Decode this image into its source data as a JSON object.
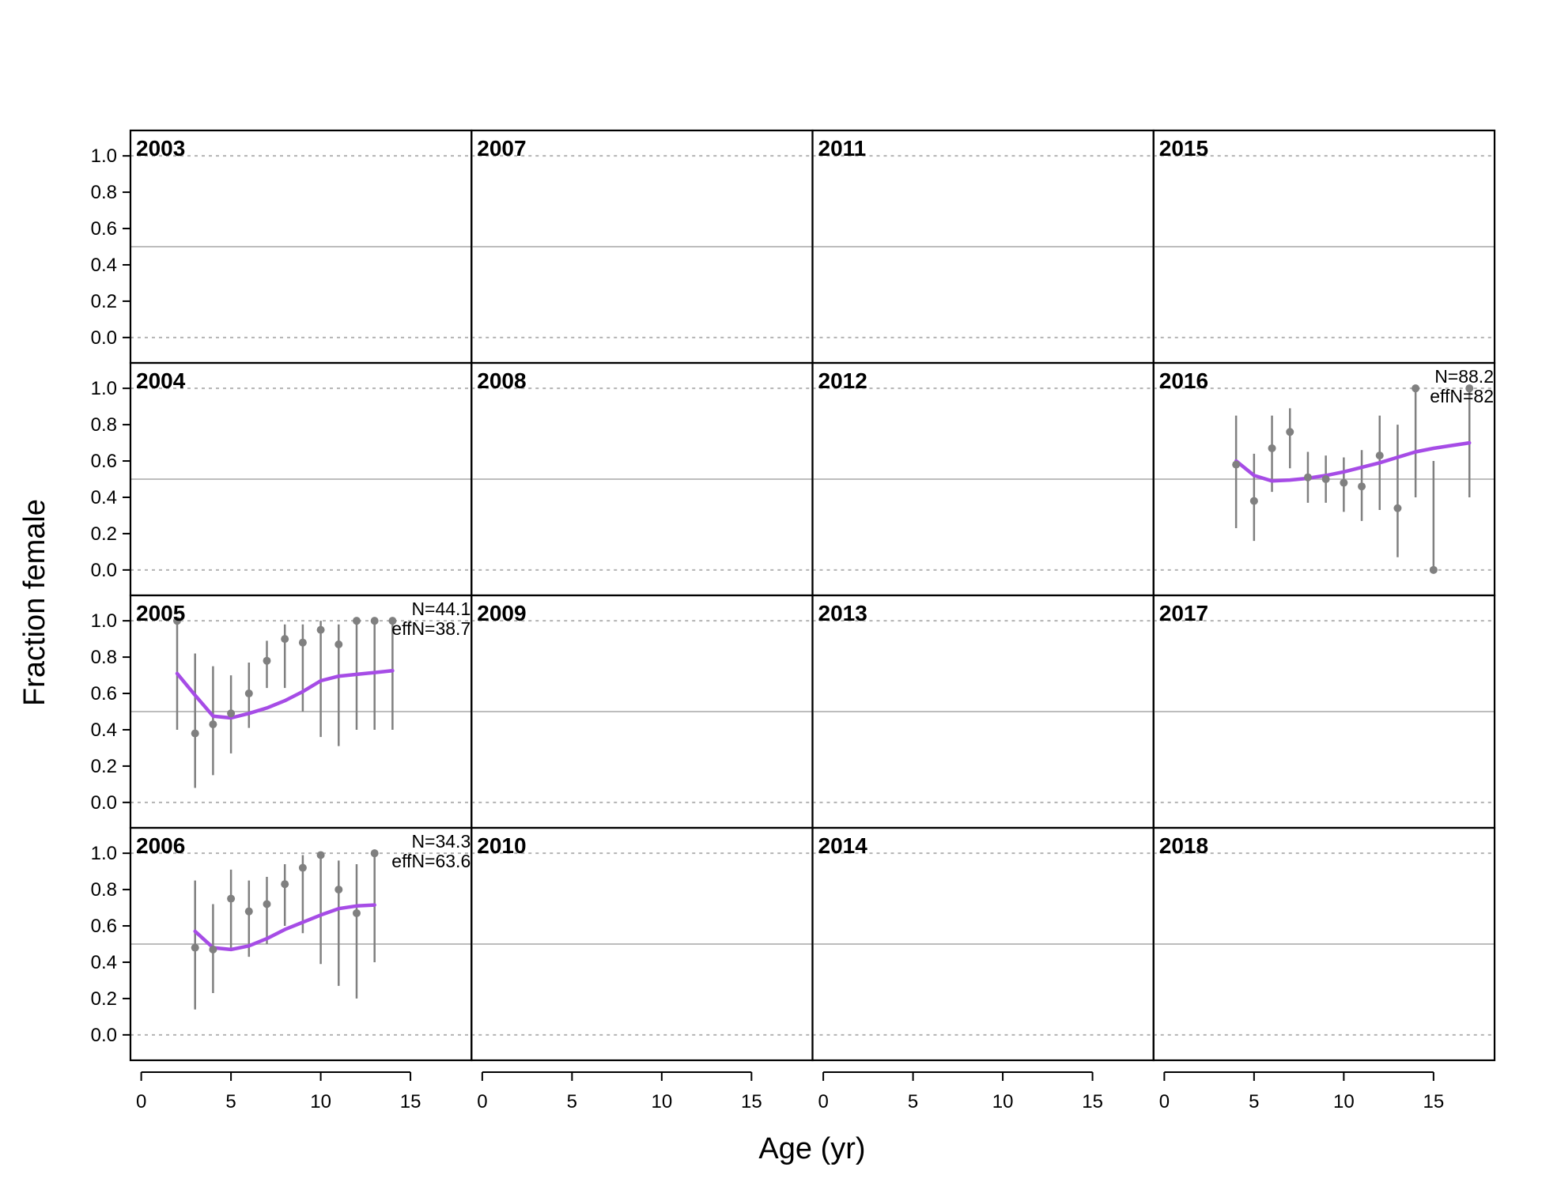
{
  "chart_data": {
    "type": "scatter",
    "layout": "small multiples, 4 rows by 4 columns, one panel per year",
    "xlabel": "Age (yr)",
    "ylabel": "Fraction female",
    "xlim": [
      -0.6,
      18.4
    ],
    "ylim": [
      -0.14,
      1.14
    ],
    "x_ticks": [
      "0",
      "5",
      "10",
      "15"
    ],
    "y_ticks": [
      "0.0",
      "0.2",
      "0.4",
      "0.6",
      "0.8",
      "1.0"
    ],
    "reference_lines": {
      "solid": 0.5,
      "dotted": [
        0.0,
        1.0
      ]
    },
    "colors": {
      "observed": "#808080",
      "expected": "#a64ce6",
      "reference_solid": "#bdbdbd",
      "reference_dotted": "#b3b3b3",
      "frame": "#000000"
    },
    "series_roles": {
      "observed": "points with vertical interval bars",
      "expected": "line"
    },
    "panels": [
      {
        "year": "2003",
        "row": 0,
        "col": 0
      },
      {
        "year": "2007",
        "row": 0,
        "col": 1
      },
      {
        "year": "2011",
        "row": 0,
        "col": 2
      },
      {
        "year": "2015",
        "row": 0,
        "col": 3
      },
      {
        "year": "2004",
        "row": 1,
        "col": 0
      },
      {
        "year": "2008",
        "row": 1,
        "col": 1
      },
      {
        "year": "2012",
        "row": 1,
        "col": 2
      },
      {
        "year": "2016",
        "row": 1,
        "col": 3,
        "n_label": "N=88.2",
        "effn_label": "effN=82",
        "observed": [
          {
            "age": 4,
            "value": 0.58,
            "lo": 0.23,
            "hi": 0.85
          },
          {
            "age": 5,
            "value": 0.38,
            "lo": 0.16,
            "hi": 0.64
          },
          {
            "age": 6,
            "value": 0.67,
            "lo": 0.43,
            "hi": 0.85
          },
          {
            "age": 7,
            "value": 0.76,
            "lo": 0.56,
            "hi": 0.89
          },
          {
            "age": 8,
            "value": 0.51,
            "lo": 0.37,
            "hi": 0.65
          },
          {
            "age": 9,
            "value": 0.5,
            "lo": 0.37,
            "hi": 0.63
          },
          {
            "age": 10,
            "value": 0.48,
            "lo": 0.32,
            "hi": 0.62
          },
          {
            "age": 11,
            "value": 0.46,
            "lo": 0.27,
            "hi": 0.66
          },
          {
            "age": 12,
            "value": 0.63,
            "lo": 0.33,
            "hi": 0.85
          },
          {
            "age": 13,
            "value": 0.34,
            "lo": 0.07,
            "hi": 0.8
          },
          {
            "age": 14,
            "value": 1.0,
            "lo": 0.4,
            "hi": 1.0
          },
          {
            "age": 15,
            "value": 0.0,
            "lo": 0.0,
            "hi": 0.6
          },
          {
            "age": 17,
            "value": 1.0,
            "lo": 0.4,
            "hi": 1.0
          }
        ],
        "expected": [
          {
            "age": 4,
            "value": 0.6
          },
          {
            "age": 5,
            "value": 0.52
          },
          {
            "age": 6,
            "value": 0.49
          },
          {
            "age": 7,
            "value": 0.495
          },
          {
            "age": 8,
            "value": 0.505
          },
          {
            "age": 9,
            "value": 0.52
          },
          {
            "age": 10,
            "value": 0.54
          },
          {
            "age": 11,
            "value": 0.565
          },
          {
            "age": 12,
            "value": 0.59
          },
          {
            "age": 13,
            "value": 0.62
          },
          {
            "age": 14,
            "value": 0.65
          },
          {
            "age": 15,
            "value": 0.67
          },
          {
            "age": 16,
            "value": 0.685
          },
          {
            "age": 17,
            "value": 0.7
          }
        ]
      },
      {
        "year": "2005",
        "row": 2,
        "col": 0,
        "n_label": "N=44.1",
        "effn_label": "effN=38.7",
        "observed": [
          {
            "age": 2,
            "value": 1.0,
            "lo": 0.4,
            "hi": 1.0
          },
          {
            "age": 3,
            "value": 0.38,
            "lo": 0.08,
            "hi": 0.82
          },
          {
            "age": 4,
            "value": 0.43,
            "lo": 0.15,
            "hi": 0.75
          },
          {
            "age": 5,
            "value": 0.49,
            "lo": 0.27,
            "hi": 0.7
          },
          {
            "age": 6,
            "value": 0.6,
            "lo": 0.41,
            "hi": 0.77
          },
          {
            "age": 7,
            "value": 0.78,
            "lo": 0.63,
            "hi": 0.89
          },
          {
            "age": 8,
            "value": 0.9,
            "lo": 0.63,
            "hi": 0.98
          },
          {
            "age": 9,
            "value": 0.88,
            "lo": 0.5,
            "hi": 0.98
          },
          {
            "age": 10,
            "value": 0.95,
            "lo": 0.36,
            "hi": 1.0
          },
          {
            "age": 11,
            "value": 0.87,
            "lo": 0.31,
            "hi": 0.98
          },
          {
            "age": 12,
            "value": 1.0,
            "lo": 0.4,
            "hi": 1.0
          },
          {
            "age": 13,
            "value": 1.0,
            "lo": 0.4,
            "hi": 1.0
          },
          {
            "age": 14,
            "value": 1.0,
            "lo": 0.4,
            "hi": 1.0
          }
        ],
        "expected": [
          {
            "age": 2,
            "value": 0.71
          },
          {
            "age": 3,
            "value": 0.59
          },
          {
            "age": 4,
            "value": 0.475
          },
          {
            "age": 5,
            "value": 0.465
          },
          {
            "age": 6,
            "value": 0.49
          },
          {
            "age": 7,
            "value": 0.52
          },
          {
            "age": 8,
            "value": 0.56
          },
          {
            "age": 9,
            "value": 0.61
          },
          {
            "age": 10,
            "value": 0.67
          },
          {
            "age": 11,
            "value": 0.695
          },
          {
            "age": 12,
            "value": 0.705
          },
          {
            "age": 13,
            "value": 0.715
          },
          {
            "age": 14,
            "value": 0.725
          }
        ]
      },
      {
        "year": "2009",
        "row": 2,
        "col": 1
      },
      {
        "year": "2013",
        "row": 2,
        "col": 2
      },
      {
        "year": "2017",
        "row": 2,
        "col": 3
      },
      {
        "year": "2006",
        "row": 3,
        "col": 0,
        "n_label": "N=34.3",
        "effn_label": "effN=63.6",
        "observed": [
          {
            "age": 3,
            "value": 0.48,
            "lo": 0.14,
            "hi": 0.85
          },
          {
            "age": 4,
            "value": 0.47,
            "lo": 0.23,
            "hi": 0.72
          },
          {
            "age": 5,
            "value": 0.75,
            "lo": 0.48,
            "hi": 0.91
          },
          {
            "age": 6,
            "value": 0.68,
            "lo": 0.43,
            "hi": 0.85
          },
          {
            "age": 7,
            "value": 0.72,
            "lo": 0.5,
            "hi": 0.87
          },
          {
            "age": 8,
            "value": 0.83,
            "lo": 0.6,
            "hi": 0.94
          },
          {
            "age": 9,
            "value": 0.92,
            "lo": 0.56,
            "hi": 0.99
          },
          {
            "age": 10,
            "value": 0.99,
            "lo": 0.39,
            "hi": 1.0
          },
          {
            "age": 11,
            "value": 0.8,
            "lo": 0.27,
            "hi": 0.96
          },
          {
            "age": 12,
            "value": 0.67,
            "lo": 0.2,
            "hi": 0.94
          },
          {
            "age": 13,
            "value": 1.0,
            "lo": 0.4,
            "hi": 1.0
          }
        ],
        "expected": [
          {
            "age": 3,
            "value": 0.57
          },
          {
            "age": 4,
            "value": 0.48
          },
          {
            "age": 5,
            "value": 0.47
          },
          {
            "age": 6,
            "value": 0.49
          },
          {
            "age": 7,
            "value": 0.53
          },
          {
            "age": 8,
            "value": 0.58
          },
          {
            "age": 9,
            "value": 0.62
          },
          {
            "age": 10,
            "value": 0.66
          },
          {
            "age": 11,
            "value": 0.695
          },
          {
            "age": 12,
            "value": 0.71
          },
          {
            "age": 13,
            "value": 0.715
          }
        ]
      },
      {
        "year": "2010",
        "row": 3,
        "col": 1
      },
      {
        "year": "2014",
        "row": 3,
        "col": 2
      },
      {
        "year": "2018",
        "row": 3,
        "col": 3
      }
    ]
  }
}
